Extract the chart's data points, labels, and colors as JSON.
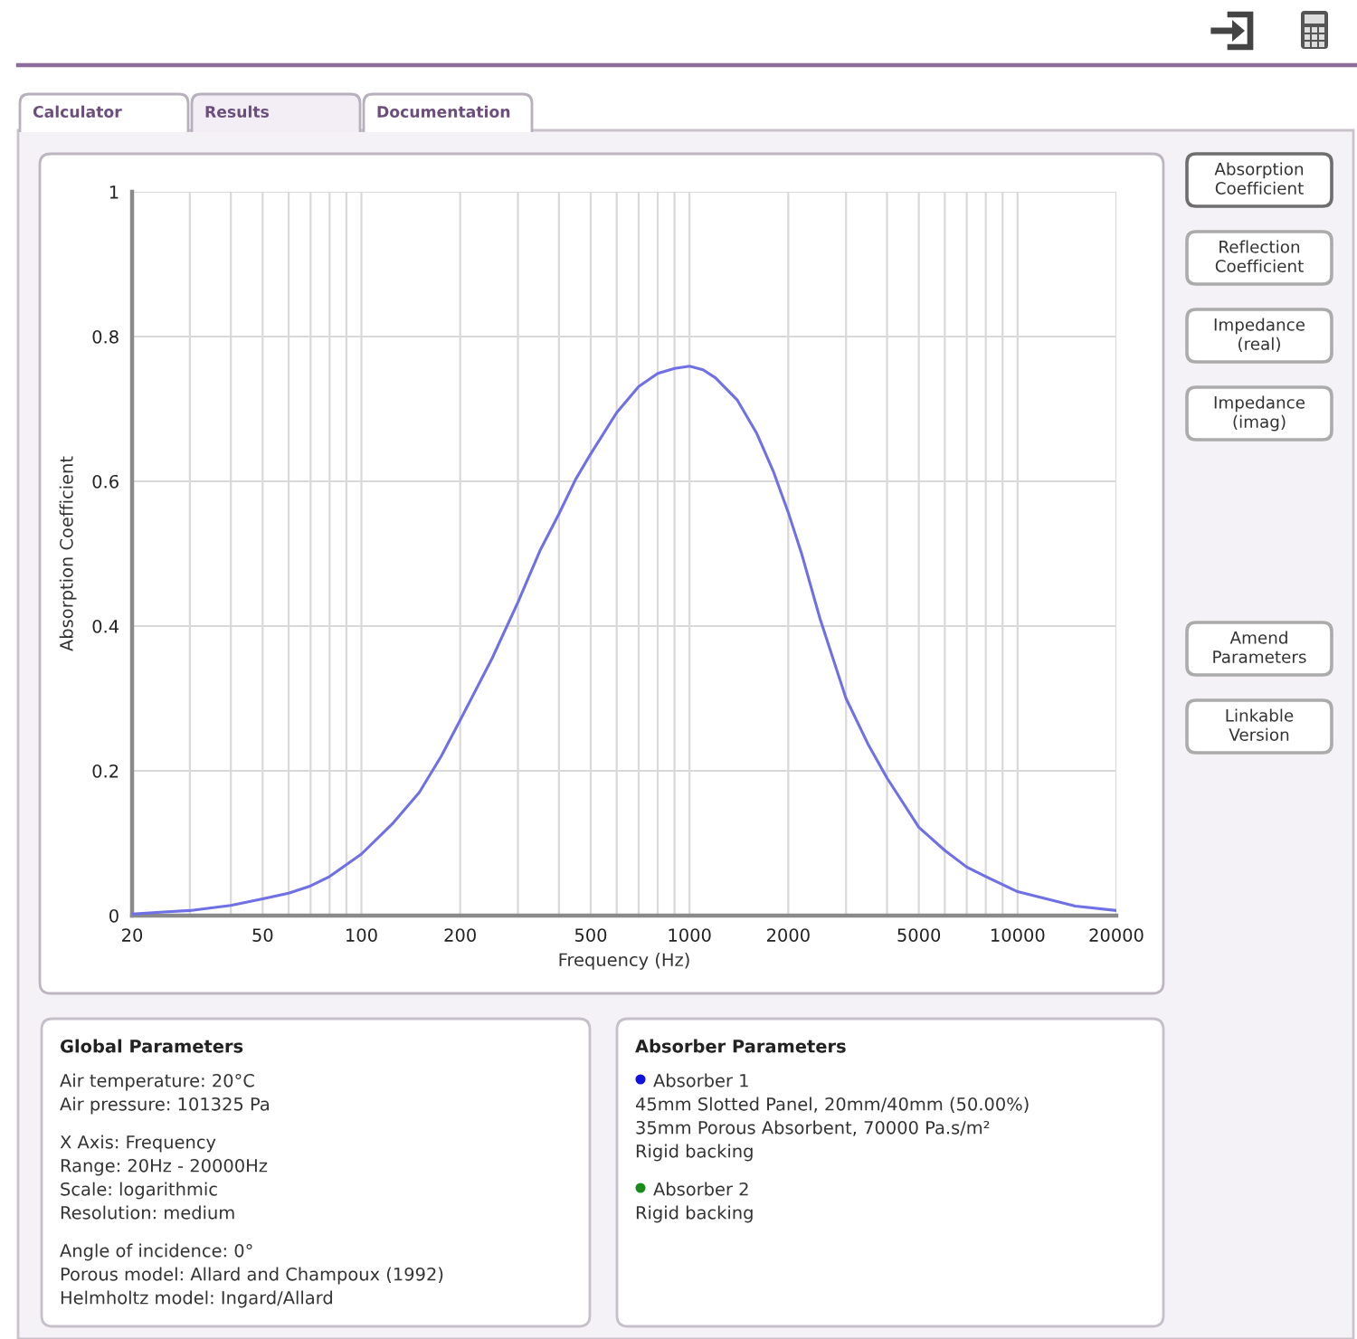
{
  "chart_data": [
    {
      "type": "other",
      "annotations": [
        "Calculator",
        "Results",
        "Documentation"
      ],
      "colors": [
        "#ffffff",
        "#f3eef6",
        "#ffffff"
      ]
    },
    {
      "type": "line",
      "xlabel": "Frequency (Hz)",
      "ylabel": "Absorption Coefficient",
      "x": [
        20,
        25,
        30,
        40,
        50,
        60,
        70,
        80,
        100,
        125,
        150,
        175,
        200,
        250,
        300,
        350,
        400,
        450,
        500,
        600,
        700,
        800,
        900,
        1000,
        1100,
        1200,
        1400,
        1600,
        1800,
        2000,
        2200,
        2500,
        3000,
        3500,
        4000,
        5000,
        6000,
        7000,
        8000,
        10000,
        15000,
        20000
      ],
      "series": [
        {
          "color": "#6f6fe6",
          "values": [
            0.002,
            0.005,
            0.007,
            0.014,
            0.023,
            0.031,
            0.041,
            0.054,
            0.085,
            0.128,
            0.17,
            0.22,
            0.27,
            0.355,
            0.433,
            0.504,
            0.555,
            0.603,
            0.638,
            0.695,
            0.731,
            0.749,
            0.756,
            0.759,
            0.754,
            0.743,
            0.712,
            0.667,
            0.614,
            0.557,
            0.499,
            0.41,
            0.3,
            0.237,
            0.19,
            0.122,
            0.09,
            0.067,
            0.054,
            0.033,
            0.013,
            0.007
          ]
        }
      ],
      "xlim": [
        20,
        20000
      ],
      "ylim": [
        0,
        1
      ],
      "xticks": [
        20,
        {
          "value": 30,
          "label": null
        },
        {
          "value": 40,
          "label": null
        },
        50,
        {
          "value": 60,
          "label": null
        },
        {
          "value": 70,
          "label": null
        },
        {
          "value": 80,
          "label": null
        },
        {
          "value": 90,
          "label": null
        },
        100,
        200,
        {
          "value": 300,
          "label": null
        },
        {
          "value": 400,
          "label": null
        },
        500,
        {
          "value": 600,
          "label": null
        },
        {
          "value": 700,
          "label": null
        },
        {
          "value": 800,
          "label": null
        },
        {
          "value": 900,
          "label": null
        },
        1000,
        2000,
        {
          "value": 3000,
          "label": null
        },
        {
          "value": 4000,
          "label": null
        },
        5000,
        {
          "value": 6000,
          "label": null
        },
        {
          "value": 7000,
          "label": null
        },
        {
          "value": 8000,
          "label": null
        },
        {
          "value": 9000,
          "label": null
        },
        10000,
        20000
      ],
      "yticks": [
        0,
        0.2,
        0.4,
        0.6,
        0.8,
        1
      ],
      "log": "x",
      "grid": true
    },
    {
      "type": "other",
      "annotations": [
        "Absorption\nCoefficient",
        "Reflection\nCoefficient",
        "Impedance\n(real)",
        "Impedance\n(imag)"
      ],
      "colors": [
        "#6e6e6e",
        "#ababab",
        "#ababab",
        "#ababab"
      ]
    },
    {
      "type": "other",
      "annotations": [
        "Amend\nParameters",
        "Linkable\nVersion"
      ],
      "colors": [
        "#ababab",
        "#ababab"
      ]
    },
    {
      "type": "other",
      "title": "Global Parameters",
      "annotations": [
        "Air temperature: 20°C\nAir pressure: 101325 Pa",
        "X Axis: Frequency\nRange: 20Hz - 20000Hz\nScale: logarithmic\nResolution: medium",
        "Angle of incidence: 0°\nPorous model: Allard and Champoux (1992)\nHelmholtz model: Ingard/Allard"
      ]
    },
    {
      "type": "other",
      "title": "Absorber Parameters",
      "annotations": [
        "Absorber 1\n45mm Slotted Panel, 20mm/40mm (50.00%)\n35mm Porous Absorbent, 70000 Pa.s/m²\nRigid backing",
        "Absorber 2\nRigid backing"
      ],
      "colors": [
        "#1010e0",
        "#1a8c1a"
      ]
    }
  ]
}
